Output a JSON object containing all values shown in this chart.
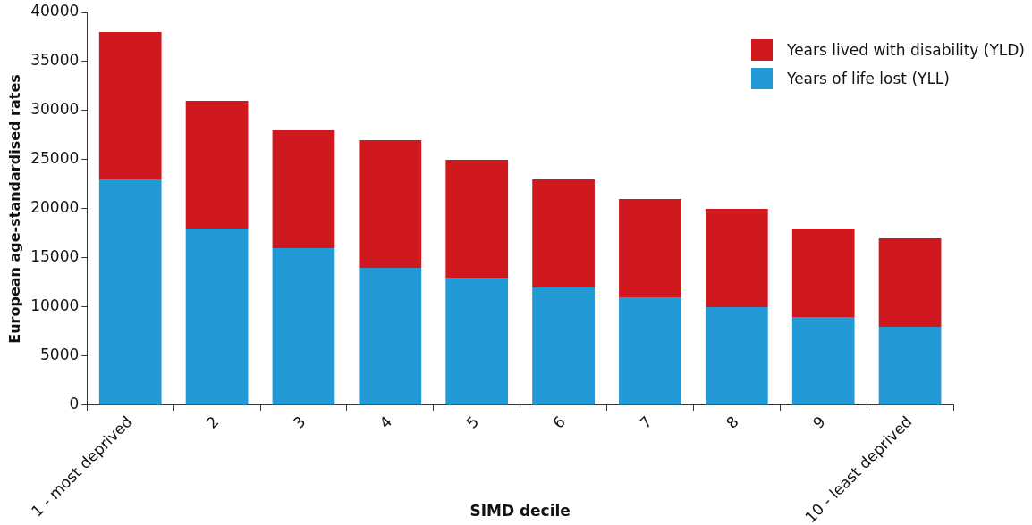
{
  "chart_data": {
    "type": "bar",
    "stacked": true,
    "xlabel": "SIMD decile",
    "ylabel": "European age-standardised rates",
    "categories": [
      "1 - most deprived",
      "2",
      "3",
      "4",
      "5",
      "6",
      "7",
      "8",
      "9",
      "10 - least deprived"
    ],
    "series": [
      {
        "name": "Years of life lost (YLL)",
        "color": "#2399d6",
        "values": [
          23000,
          18000,
          16000,
          14000,
          13000,
          12000,
          11000,
          10000,
          9000,
          8000
        ]
      },
      {
        "name": "Years lived with disability (YLD)",
        "color": "#d0191f",
        "values": [
          15000,
          13000,
          12000,
          13000,
          12000,
          11000,
          10000,
          10000,
          9000,
          9000
        ]
      }
    ],
    "ylim": [
      0,
      40000
    ],
    "yticks": [
      0,
      5000,
      10000,
      15000,
      20000,
      25000,
      30000,
      35000,
      40000
    ],
    "grid": false,
    "legend": "top right"
  }
}
